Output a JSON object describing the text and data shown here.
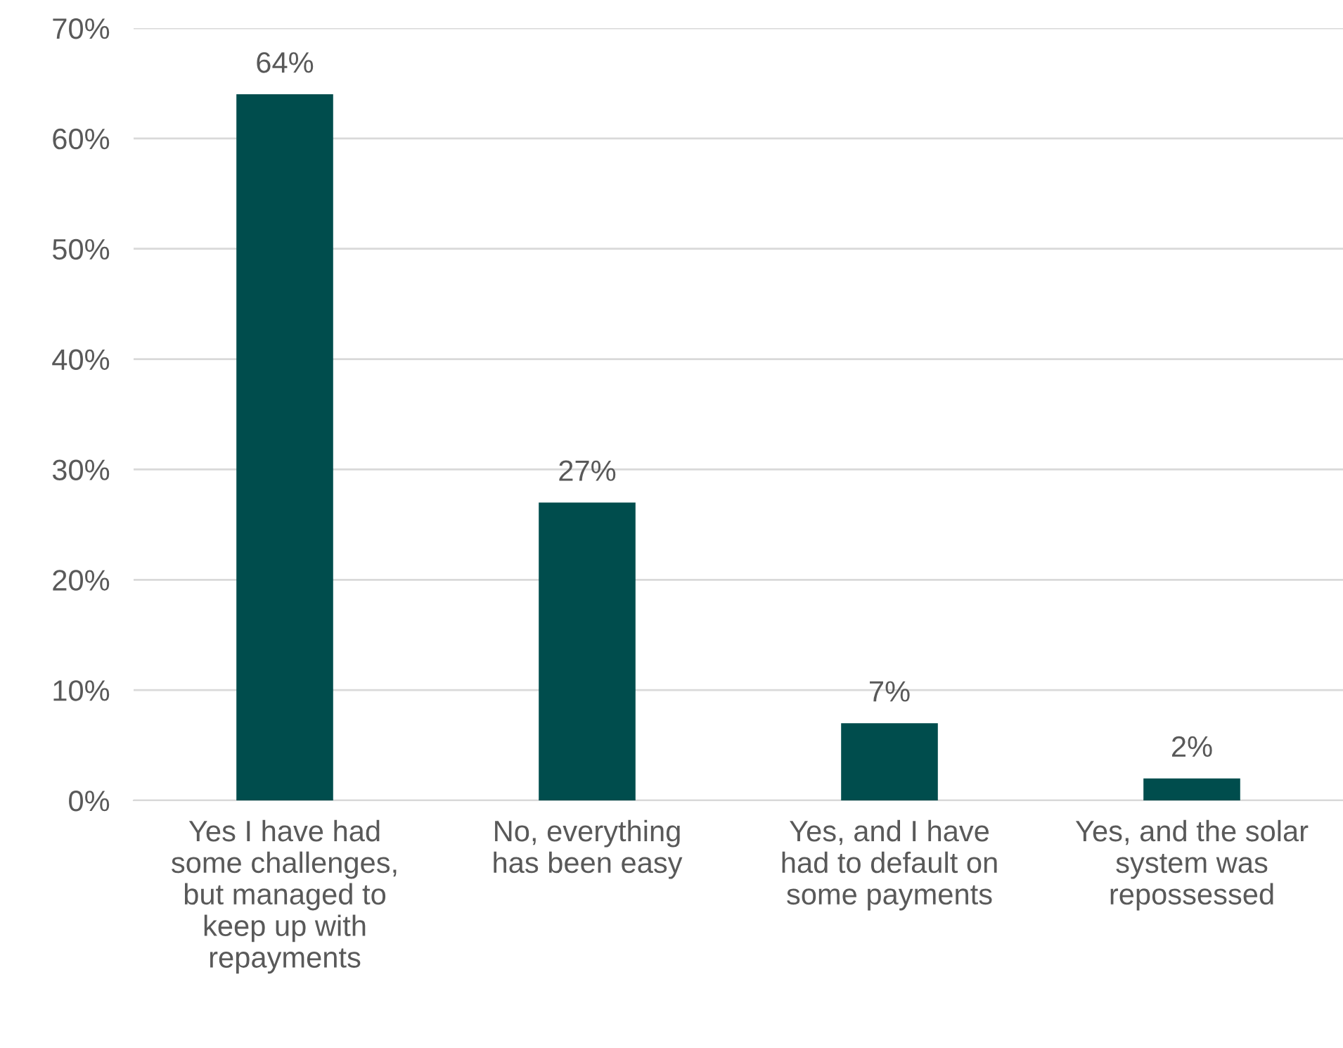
{
  "chart_data": {
    "type": "bar",
    "categories": [
      "Yes I have had\nsome challenges,\nbut managed to\nkeep up with\nrepayments",
      "No, everything\nhas been easy",
      "Yes, and I have\nhad to default on\nsome payments",
      "Yes, and the solar\nsystem was\nrepossessed"
    ],
    "values": [
      64,
      27,
      7,
      2
    ],
    "color": "#004d4d",
    "ylim": [
      0,
      70
    ],
    "yticks": [
      {
        "value": 0,
        "label": "0%"
      },
      {
        "value": 10,
        "label": "10%"
      },
      {
        "value": 20,
        "label": "20%"
      },
      {
        "value": 30,
        "label": "30%"
      },
      {
        "value": 40,
        "label": "40%"
      },
      {
        "value": 50,
        "label": "50%"
      },
      {
        "value": 60,
        "label": "60%"
      },
      {
        "value": 70,
        "label": "70%"
      }
    ],
    "value_labels": [
      "64%",
      "27%",
      "7%",
      "2%"
    ],
    "grid": "y",
    "legend": false
  }
}
